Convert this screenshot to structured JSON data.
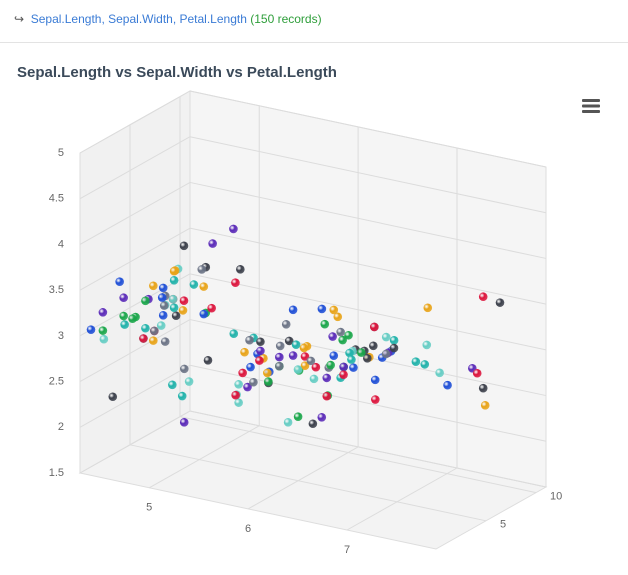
{
  "breadcrumb": {
    "fields": "Sepal.Length, Sepal.Width, Petal.Length",
    "count": "(150 records)"
  },
  "chart_data": {
    "type": "scatter3d",
    "title": "Sepal.Length vs Sepal.Width vs Petal.Length",
    "x": [
      5.1,
      4.9,
      4.7,
      4.6,
      5.0,
      5.4,
      4.6,
      5.0,
      4.4,
      4.9,
      5.4,
      4.8,
      4.8,
      4.3,
      5.8,
      5.7,
      5.4,
      5.1,
      5.7,
      5.1,
      5.4,
      5.1,
      4.6,
      5.1,
      4.8,
      5.0,
      5.0,
      5.2,
      5.2,
      4.7,
      4.8,
      5.4,
      5.2,
      5.5,
      4.9,
      5.0,
      5.5,
      4.9,
      4.4,
      5.1,
      5.0,
      4.5,
      4.4,
      5.0,
      5.1,
      4.8,
      5.1,
      4.6,
      5.3,
      5.0,
      7.0,
      6.4,
      6.9,
      5.5,
      6.5,
      5.7,
      6.3,
      4.9,
      6.6,
      5.2,
      5.0,
      5.9,
      6.0,
      6.1,
      5.6,
      6.7,
      5.6,
      5.8,
      6.2,
      5.6,
      5.9,
      6.1,
      6.3,
      6.1,
      6.4,
      6.6,
      6.8,
      6.7,
      6.0,
      5.7,
      5.5,
      5.5,
      5.8,
      6.0,
      5.4,
      6.0,
      6.7,
      6.3,
      5.6,
      5.5,
      5.5,
      6.1,
      5.8,
      5.0,
      5.6,
      5.7,
      5.7,
      6.2,
      5.1,
      5.7,
      6.3,
      5.8,
      7.1,
      6.3,
      6.5,
      7.6,
      4.9,
      7.3,
      6.7,
      7.2,
      6.5,
      6.4,
      6.8,
      5.7,
      5.8,
      6.4,
      6.5,
      7.7,
      7.7,
      6.0,
      6.9,
      5.6,
      7.7,
      6.3,
      6.7,
      7.2,
      6.2,
      6.1,
      6.4,
      7.2,
      7.4,
      7.9,
      6.4,
      6.3,
      6.1,
      7.7,
      6.3,
      6.4,
      6.0,
      6.9,
      6.7,
      6.9,
      5.8,
      6.8,
      6.7,
      6.7,
      6.3,
      6.5,
      6.2,
      5.9
    ],
    "y": [
      3.5,
      3.0,
      3.2,
      3.1,
      3.6,
      3.9,
      3.4,
      3.4,
      2.9,
      3.1,
      3.7,
      3.4,
      3.0,
      3.0,
      4.0,
      4.4,
      3.9,
      3.5,
      3.8,
      3.8,
      3.4,
      3.7,
      3.6,
      3.3,
      3.4,
      3.0,
      3.4,
      3.5,
      3.4,
      3.2,
      3.1,
      3.4,
      4.1,
      4.2,
      3.1,
      3.2,
      3.5,
      3.6,
      3.0,
      3.4,
      3.5,
      2.3,
      3.2,
      3.5,
      3.8,
      3.0,
      3.8,
      3.2,
      3.7,
      3.3,
      3.2,
      3.2,
      3.1,
      2.3,
      2.8,
      2.8,
      3.3,
      2.4,
      2.9,
      2.7,
      2.0,
      3.0,
      2.2,
      2.9,
      2.9,
      3.1,
      3.0,
      2.7,
      2.2,
      2.5,
      3.2,
      2.8,
      2.5,
      2.8,
      2.9,
      3.0,
      2.8,
      3.0,
      2.9,
      2.6,
      2.4,
      2.4,
      2.7,
      2.7,
      3.0,
      3.4,
      3.1,
      2.3,
      3.0,
      2.5,
      2.6,
      3.0,
      2.6,
      2.3,
      2.7,
      3.0,
      2.9,
      2.9,
      2.5,
      2.8,
      3.3,
      2.7,
      3.0,
      2.9,
      3.0,
      3.0,
      2.5,
      2.9,
      2.5,
      3.6,
      3.2,
      2.7,
      3.0,
      2.5,
      2.8,
      3.2,
      3.0,
      3.8,
      2.6,
      2.2,
      3.2,
      2.8,
      2.8,
      2.7,
      3.3,
      3.2,
      2.8,
      3.0,
      2.8,
      3.0,
      2.8,
      3.8,
      2.8,
      2.8,
      2.6,
      3.0,
      3.4,
      3.1,
      3.0,
      3.1,
      3.1,
      3.1,
      2.7,
      3.2,
      3.3,
      3.0,
      2.5,
      3.0,
      3.4,
      3.0
    ],
    "z": [
      1.4,
      1.4,
      1.3,
      1.5,
      1.4,
      1.7,
      1.4,
      1.5,
      1.4,
      1.5,
      1.5,
      1.6,
      1.4,
      1.1,
      1.2,
      1.5,
      1.3,
      1.4,
      1.7,
      1.5,
      1.7,
      1.5,
      1.0,
      1.7,
      1.9,
      1.6,
      1.6,
      1.5,
      1.4,
      1.6,
      1.6,
      1.5,
      1.5,
      1.4,
      1.5,
      1.2,
      1.3,
      1.4,
      1.3,
      1.5,
      1.3,
      1.3,
      1.3,
      1.6,
      1.9,
      1.4,
      1.6,
      1.4,
      1.5,
      1.4,
      4.7,
      4.5,
      4.9,
      4.0,
      4.6,
      4.5,
      4.7,
      3.3,
      4.6,
      3.9,
      3.5,
      4.2,
      4.0,
      4.7,
      3.6,
      4.4,
      4.5,
      4.1,
      4.5,
      3.9,
      4.8,
      4.0,
      4.9,
      4.7,
      4.3,
      4.4,
      4.8,
      5.0,
      4.5,
      3.5,
      3.8,
      3.7,
      3.9,
      5.1,
      4.5,
      4.5,
      4.7,
      4.4,
      4.1,
      4.0,
      4.4,
      4.6,
      4.0,
      3.3,
      4.2,
      4.2,
      4.2,
      4.3,
      3.0,
      4.1,
      6.0,
      5.1,
      5.9,
      5.6,
      5.8,
      6.6,
      4.5,
      6.3,
      5.8,
      6.1,
      5.1,
      5.3,
      5.5,
      5.0,
      5.1,
      5.3,
      5.5,
      6.7,
      6.9,
      5.0,
      5.7,
      4.9,
      6.7,
      4.9,
      5.7,
      6.0,
      4.8,
      4.9,
      5.6,
      5.8,
      6.1,
      6.4,
      5.6,
      5.1,
      5.6,
      6.1,
      5.6,
      5.5,
      4.8,
      5.4,
      5.6,
      5.1,
      5.1,
      5.9,
      5.7,
      5.2,
      5.0,
      5.2,
      5.4,
      5.1
    ],
    "xlim": [
      4.3,
      7.9
    ],
    "xticks": [
      5,
      6,
      7
    ],
    "ylim": [
      1.5,
      5
    ],
    "yticks": [
      1.5,
      2,
      2.5,
      3,
      3.5,
      4,
      4.5,
      5
    ],
    "zlim": [
      0,
      11
    ],
    "zticks": [
      5,
      10
    ],
    "grid": true,
    "palette": [
      "#dc143c",
      "#e8a317",
      "#1aa64a",
      "#20b2aa",
      "#1f4fd6",
      "#3b3f4a",
      "#5a2ab8",
      "#6b7385",
      "#66cdc4"
    ]
  }
}
